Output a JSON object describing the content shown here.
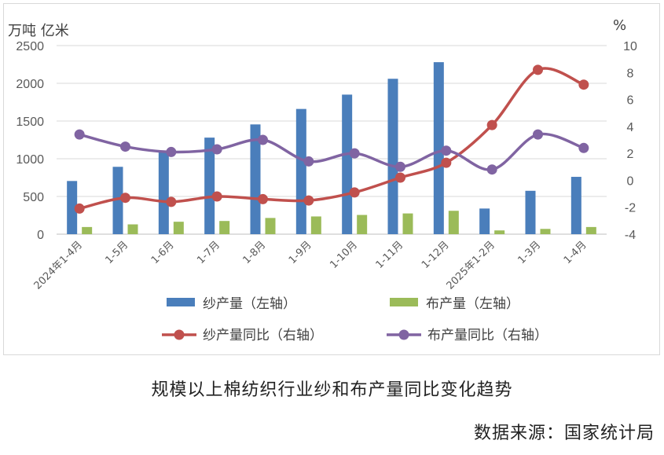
{
  "chart_data": {
    "type": "bar+line",
    "left_unit": "万吨 亿米",
    "right_unit": "%",
    "left_ylim": [
      0,
      2500
    ],
    "left_ticks": [
      0,
      500,
      1000,
      1500,
      2000,
      2500
    ],
    "right_ylim": [
      -4,
      10
    ],
    "right_ticks": [
      -4,
      -2,
      0,
      2,
      4,
      6,
      8,
      10
    ],
    "grid": true,
    "legend_position": "bottom",
    "categories": [
      "2024年1-4月",
      "1-5月",
      "1-6月",
      "1-7月",
      "1-8月",
      "1-9月",
      "1-10月",
      "1-11月",
      "1-12月",
      "2025年1-2月",
      "1-3月",
      "1-4月"
    ],
    "bar_series": [
      {
        "name": "纱产量（左轴）",
        "axis": "left",
        "color": "#4a7ebb",
        "values": [
          705,
          893,
          1090,
          1280,
          1455,
          1660,
          1850,
          2060,
          2280,
          340,
          575,
          760
        ]
      },
      {
        "name": "布产量（左轴）",
        "axis": "left",
        "color": "#9bbb59",
        "values": [
          95,
          130,
          165,
          175,
          215,
          235,
          255,
          275,
          310,
          50,
          70,
          95
        ]
      }
    ],
    "line_series": [
      {
        "name": "纱产量同比（右轴）",
        "axis": "right",
        "color": "#c0504d",
        "values": [
          -2.1,
          -1.3,
          -1.6,
          -1.2,
          -1.4,
          -1.5,
          -0.9,
          0.2,
          1.3,
          4.1,
          8.2,
          7.1
        ]
      },
      {
        "name": "布产量同比（右轴）",
        "axis": "right",
        "color": "#8064a2",
        "values": [
          3.4,
          2.5,
          2.1,
          2.3,
          3.0,
          1.4,
          2.0,
          1.0,
          2.2,
          0.8,
          3.4,
          2.4
        ]
      }
    ]
  },
  "caption": "规模以上棉纺织行业纱和布产量同比变化趋势",
  "source": "数据来源：国家统计局"
}
